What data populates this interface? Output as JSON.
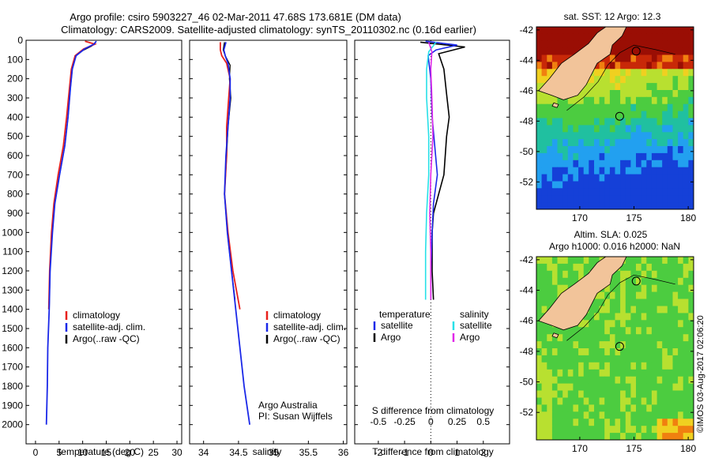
{
  "header": {
    "line1": "Argo profile: csiro 5903227_46 02-Mar-2011 47.68S 173.681E (DM data)",
    "line2": "Climatology: CARS2009. Satellite-adjusted climatology: synTS_20110302.nc (0.16d earlier)"
  },
  "colors": {
    "climatology": "#e8201c",
    "satellite": "#1a28e8",
    "argo": "#000000",
    "salinity_satellite": "#28e0e8",
    "salinity_argo": "#e028e8",
    "land": "#f2c49a"
  },
  "chart_data": [
    {
      "type": "line",
      "title": "",
      "xlabel": "temperature (deg C)",
      "ylabel": "",
      "xlim": [
        -2,
        31
      ],
      "ylim": [
        0,
        2100
      ],
      "y_inverted": true,
      "xticks": [
        "0",
        "5",
        "10",
        "15",
        "20",
        "25",
        "30"
      ],
      "yticks": [
        "0",
        "100",
        "200",
        "300",
        "400",
        "500",
        "600",
        "700",
        "800",
        "900",
        "1000",
        "1100",
        "1200",
        "1300",
        "1400",
        "1500",
        "1600",
        "1700",
        "1800",
        "1900",
        "2000"
      ],
      "legend": [
        "climatology",
        "satellite-adj. clim.",
        "Argo(..raw -QC)"
      ],
      "series": [
        {
          "name": "climatology",
          "points": [
            [
              10.5,
              5
            ],
            [
              12.6,
              20
            ],
            [
              10.2,
              45
            ],
            [
              8.4,
              80
            ],
            [
              7.6,
              150
            ],
            [
              7.2,
              250
            ],
            [
              6.6,
              400
            ],
            [
              5.9,
              550
            ],
            [
              4.8,
              700
            ],
            [
              3.9,
              850
            ],
            [
              3.4,
              1000
            ],
            [
              3.0,
              1200
            ],
            [
              2.8,
              1400
            ]
          ]
        },
        {
          "name": "satellite-adj. clim.",
          "points": [
            [
              12.9,
              5
            ],
            [
              12.4,
              20
            ],
            [
              10.4,
              45
            ],
            [
              8.6,
              80
            ],
            [
              7.8,
              150
            ],
            [
              7.4,
              250
            ],
            [
              6.9,
              400
            ],
            [
              6.2,
              550
            ],
            [
              5.1,
              700
            ],
            [
              4.1,
              850
            ],
            [
              3.6,
              1000
            ],
            [
              3.1,
              1200
            ],
            [
              2.9,
              1400
            ],
            [
              2.6,
              1600
            ],
            [
              2.5,
              1800
            ],
            [
              2.3,
              2000
            ]
          ]
        },
        {
          "name": "Argo(..raw -QC)",
          "points": [
            [
              12.7,
              10
            ],
            [
              11.9,
              30
            ],
            [
              9.5,
              60
            ],
            [
              8.5,
              80
            ],
            [
              7.8,
              150
            ],
            [
              7.4,
              250
            ],
            [
              6.9,
              400
            ],
            [
              6.2,
              550
            ],
            [
              5.1,
              700
            ],
            [
              4.1,
              850
            ],
            [
              3.5,
              1000
            ],
            [
              3.1,
              1200
            ],
            [
              2.9,
              1400
            ]
          ]
        }
      ]
    },
    {
      "type": "line",
      "title": "",
      "xlabel": "salinity",
      "ylabel": "",
      "xlim": [
        33.8,
        36.05
      ],
      "ylim": [
        0,
        2100
      ],
      "y_inverted": true,
      "xticks": [
        "34",
        "34.5",
        "35",
        "35.5",
        "36"
      ],
      "legend": [
        "climatology",
        "satellite-adj. clim.",
        "Argo(..raw -QC)"
      ],
      "series": [
        {
          "name": "climatology",
          "points": [
            [
              34.24,
              10
            ],
            [
              34.24,
              50
            ],
            [
              34.26,
              80
            ],
            [
              34.33,
              120
            ],
            [
              34.38,
              200
            ],
            [
              34.36,
              300
            ],
            [
              34.33,
              450
            ],
            [
              34.33,
              600
            ],
            [
              34.3,
              800
            ],
            [
              34.35,
              1000
            ],
            [
              34.42,
              1200
            ],
            [
              34.52,
              1400
            ]
          ]
        },
        {
          "name": "satellite-adj. clim.",
          "points": [
            [
              34.32,
              10
            ],
            [
              34.29,
              50
            ],
            [
              34.31,
              80
            ],
            [
              34.35,
              120
            ],
            [
              34.38,
              200
            ],
            [
              34.38,
              300
            ],
            [
              34.35,
              450
            ],
            [
              34.32,
              600
            ],
            [
              34.3,
              800
            ],
            [
              34.34,
              1000
            ],
            [
              34.4,
              1200
            ],
            [
              34.46,
              1400
            ],
            [
              34.52,
              1600
            ],
            [
              34.58,
              1800
            ],
            [
              34.66,
              2000
            ]
          ]
        },
        {
          "name": "Argo(..raw -QC)",
          "points": [
            [
              34.3,
              10
            ],
            [
              34.28,
              50
            ],
            [
              34.31,
              80
            ],
            [
              34.38,
              130
            ],
            [
              34.37,
              200
            ],
            [
              34.39,
              300
            ],
            [
              34.35,
              450
            ],
            [
              34.33,
              600
            ],
            [
              34.3,
              800
            ],
            [
              34.34,
              1000
            ],
            [
              34.4,
              1200
            ],
            [
              34.45,
              1350
            ]
          ]
        }
      ],
      "annotations": [
        "Argo Australia",
        "PI: Susan Wijffels"
      ]
    },
    {
      "type": "line",
      "title": "",
      "xlabel": "T difference from climatology",
      "xlabel_top": "S difference from climatology",
      "xlim": [
        -2.9,
        3.0
      ],
      "ylim": [
        0,
        2100
      ],
      "y_inverted": true,
      "xticks_T": [
        "-2",
        "-1",
        "0",
        "1",
        "2"
      ],
      "xticks_S": [
        "-0.5",
        "-0.25",
        "0",
        "0.25",
        "0.5"
      ],
      "legend_temperature": [
        "satellite",
        "Argo"
      ],
      "legend_salinity": [
        "satellite",
        "Argo"
      ],
      "legend_titles": [
        "temperature",
        "salinity"
      ],
      "series": [
        {
          "name": "T satellite",
          "points": [
            [
              -0.2,
              5
            ],
            [
              1.0,
              25
            ],
            [
              0.2,
              50
            ],
            [
              -0.1,
              80
            ],
            [
              0.0,
              200
            ],
            [
              0.05,
              400
            ],
            [
              0.15,
              550
            ],
            [
              0.25,
              700
            ],
            [
              0.1,
              850
            ],
            [
              0.05,
              1000
            ],
            [
              0.0,
              1200
            ],
            [
              0.0,
              1350
            ]
          ]
        },
        {
          "name": "T Argo",
          "points": [
            [
              -0.4,
              10
            ],
            [
              1.3,
              35
            ],
            [
              0.3,
              70
            ],
            [
              0.5,
              150
            ],
            [
              0.6,
              280
            ],
            [
              0.7,
              400
            ],
            [
              0.6,
              500
            ],
            [
              0.5,
              700
            ],
            [
              0.1,
              900
            ],
            [
              0.05,
              1000
            ],
            [
              0.05,
              1200
            ],
            [
              0.1,
              1350
            ]
          ]
        },
        {
          "name": "S satellite",
          "points": [
            [
              0.05,
              10
            ],
            [
              -0.02,
              60
            ],
            [
              -0.04,
              150
            ],
            [
              -0.04,
              300
            ],
            [
              -0.02,
              500
            ],
            [
              -0.02,
              700
            ],
            [
              -0.04,
              900
            ],
            [
              -0.05,
              1100
            ],
            [
              -0.05,
              1350
            ]
          ]
        },
        {
          "name": "S Argo",
          "points": [
            [
              -0.02,
              10
            ],
            [
              0.01,
              60
            ],
            [
              0.0,
              150
            ],
            [
              0.01,
              300
            ],
            [
              0.02,
              500
            ],
            [
              0.0,
              700
            ],
            [
              -0.01,
              900
            ],
            [
              0.0,
              1100
            ],
            [
              0.0,
              1350
            ]
          ]
        }
      ]
    },
    {
      "type": "heatmap",
      "title": "sat. SST: 12 Argo: 12.3",
      "xlim": [
        166,
        180.5
      ],
      "ylim": [
        -53.8,
        -41.8
      ],
      "xticks": [
        "170",
        "175",
        "180"
      ],
      "yticks": [
        "-42",
        "-44",
        "-46",
        "-48",
        "-50",
        "-52"
      ],
      "argo_marker": [
        173.68,
        -47.68
      ]
    },
    {
      "type": "heatmap",
      "title_lines": [
        "Altim. SLA: 0.025",
        "Argo h1000: 0.016 h2000: NaN"
      ],
      "xlim": [
        166,
        180.5
      ],
      "ylim": [
        -53.8,
        -41.8
      ],
      "xticks": [
        "170",
        "175",
        "180"
      ],
      "yticks": [
        "-42",
        "-44",
        "-46",
        "-48",
        "-50",
        "-52"
      ],
      "argo_marker": [
        173.68,
        -47.68
      ]
    }
  ],
  "footer": {
    "stamp": "©IMOS 03-Aug-2017 02:06:20"
  }
}
